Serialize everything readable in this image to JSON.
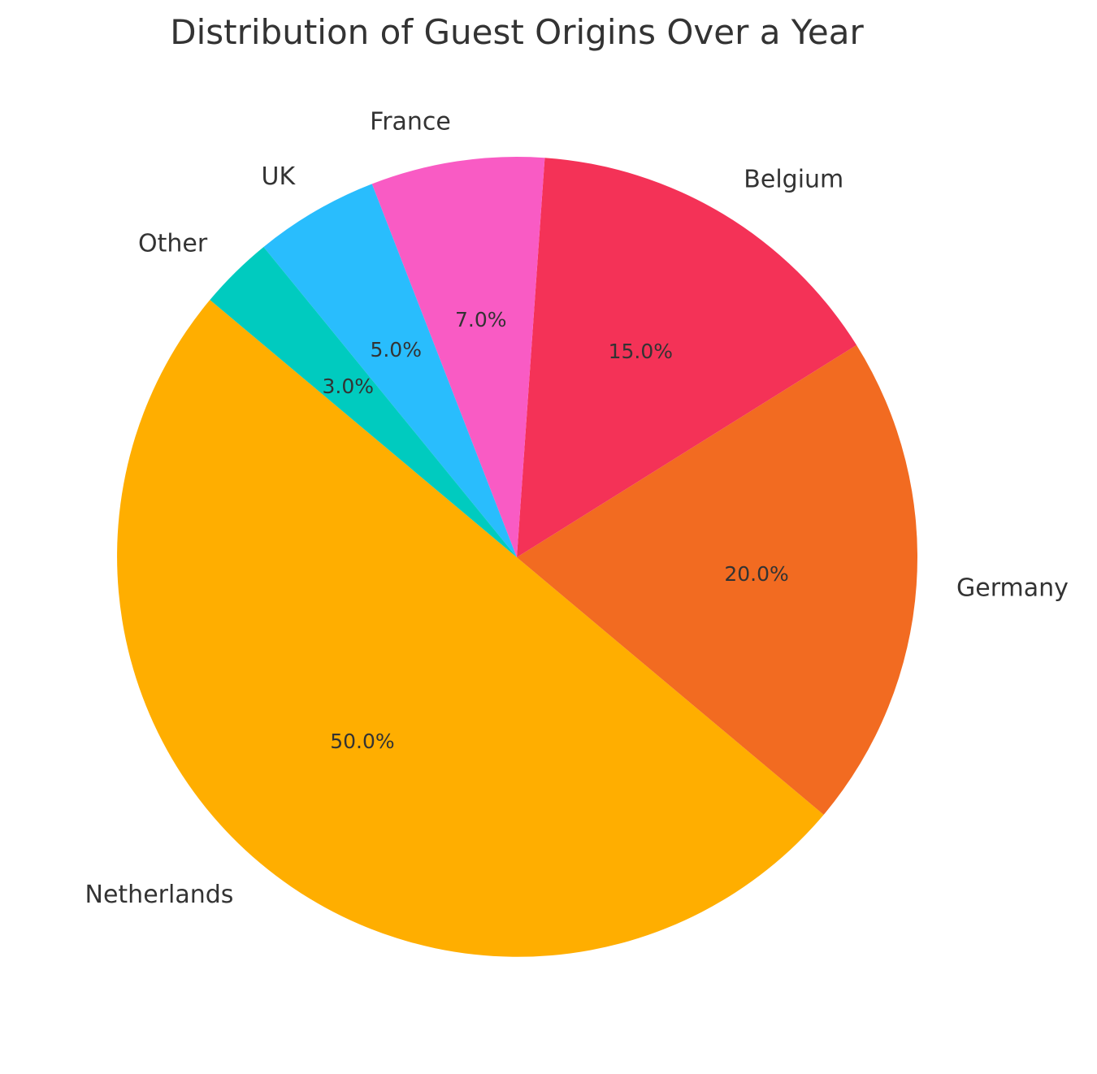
{
  "chart_data": {
    "type": "pie",
    "title": "Distribution of Guest Origins Over a Year",
    "start_angle_deg": 140,
    "direction": "counterclockwise",
    "slices": [
      {
        "label": "Netherlands",
        "value": 50.0,
        "pct_label": "50.0%",
        "color": "#FFAE00"
      },
      {
        "label": "Germany",
        "value": 20.0,
        "pct_label": "20.0%",
        "color": "#F26B21"
      },
      {
        "label": "Belgium",
        "value": 15.0,
        "pct_label": "15.0%",
        "color": "#F43257"
      },
      {
        "label": "France",
        "value": 7.0,
        "pct_label": "7.0%",
        "color": "#F95BC4"
      },
      {
        "label": "UK",
        "value": 5.0,
        "pct_label": "5.0%",
        "color": "#29BDFD"
      },
      {
        "label": "Other",
        "value": 3.0,
        "pct_label": "3.0%",
        "color": "#00CBBF"
      }
    ]
  }
}
